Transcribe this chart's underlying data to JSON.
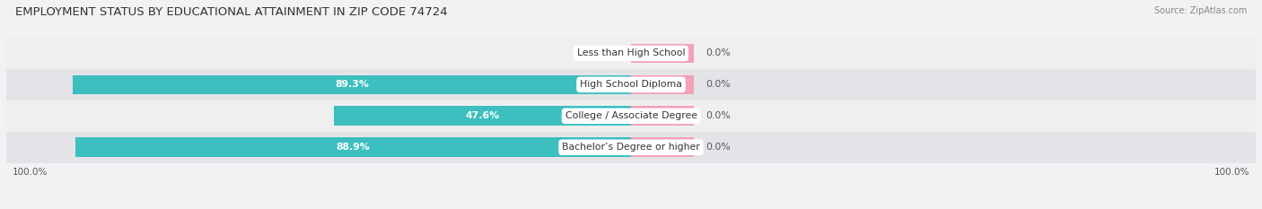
{
  "title": "EMPLOYMENT STATUS BY EDUCATIONAL ATTAINMENT IN ZIP CODE 74724",
  "source": "Source: ZipAtlas.com",
  "categories": [
    "Less than High School",
    "High School Diploma",
    "College / Associate Degree",
    "Bachelor’s Degree or higher"
  ],
  "labor_force_values": [
    0.0,
    89.3,
    47.6,
    88.9
  ],
  "unemployed_visual": [
    10.0,
    10.0,
    10.0,
    10.0
  ],
  "labor_force_color": "#3BBFBF",
  "unemployed_color": "#F4A0B8",
  "row_bg_colors": [
    "#EFEFEF",
    "#E4E4E8"
  ],
  "title_fontsize": 9.5,
  "label_fontsize": 7.8,
  "tick_fontsize": 7.5,
  "source_fontsize": 7,
  "legend_fontsize": 7.5,
  "xlim": [
    -100,
    100
  ],
  "left_axis_label": "100.0%",
  "right_axis_label": "100.0%",
  "background_color": "#F2F2F4"
}
